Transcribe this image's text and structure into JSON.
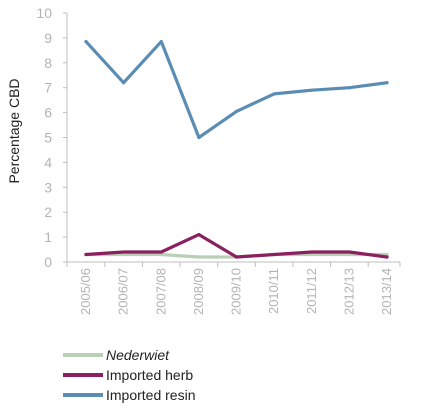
{
  "chart_data": {
    "type": "line",
    "title": "",
    "xlabel": "",
    "ylabel": "Percentage CBD",
    "ylim": [
      0,
      10
    ],
    "yticks": [
      0,
      1,
      2,
      3,
      4,
      5,
      6,
      7,
      8,
      9,
      10
    ],
    "grid": false,
    "legend_position": "bottom-left",
    "categories": [
      "2005/06",
      "2006/07",
      "2007/08",
      "2008/09",
      "2009/10",
      "2010/11",
      "2011/12",
      "2012/13",
      "2013/14"
    ],
    "series": [
      {
        "name": "Nederwiet",
        "italic": true,
        "color": "#b9d0b6",
        "values": [
          0.3,
          0.3,
          0.3,
          0.2,
          0.2,
          0.3,
          0.3,
          0.3,
          0.3
        ]
      },
      {
        "name": "Imported herb",
        "italic": false,
        "color": "#8a2060",
        "values": [
          0.3,
          0.4,
          0.4,
          1.1,
          0.2,
          0.3,
          0.4,
          0.4,
          0.2
        ]
      },
      {
        "name": "Imported resin",
        "italic": false,
        "color": "#5b8db4",
        "values": [
          8.85,
          7.2,
          8.85,
          5.0,
          6.05,
          6.75,
          6.9,
          7.0,
          7.2
        ]
      }
    ]
  }
}
